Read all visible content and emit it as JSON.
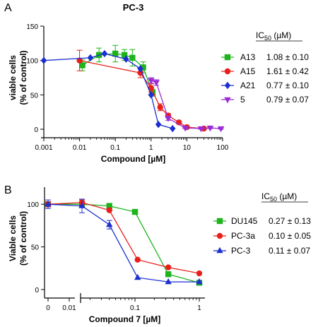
{
  "chart_data": [
    {
      "panel": "A",
      "type": "scatter",
      "title": "PC-3",
      "xlabel": "Compound  [µM]",
      "ylabel": "viable cells",
      "ylabel2": "(% of control)",
      "xscale": "log",
      "xlim": [
        0.001,
        100
      ],
      "ylim": [
        0,
        150
      ],
      "x_ticks": [
        "0.001",
        "0.01",
        "0.1",
        "1",
        "10",
        "100"
      ],
      "y_ticks": [
        "0",
        "50",
        "100",
        "150"
      ],
      "legend_header": {
        "prefix": "IC",
        "sub": "50",
        "suffix": " (µM)"
      },
      "legend_position": "right",
      "series": [
        {
          "name": "A13",
          "value": "1.08 ± 0.10",
          "color": "#1db31d",
          "marker": "square",
          "x": [
            0.012,
            0.035,
            0.1,
            0.18,
            0.3,
            0.6,
            1.1
          ],
          "y": [
            93,
            108,
            110,
            108,
            104,
            90,
            53
          ],
          "err": [
            8,
            10,
            12,
            8,
            12,
            8,
            5
          ]
        },
        {
          "name": "A15",
          "value": "1.61 ± 0.42",
          "color": "#e8201c",
          "marker": "circle",
          "x": [
            0.01,
            0.5,
            1.0,
            1.8,
            3.0,
            6.0,
            10,
            30
          ],
          "y": [
            100,
            82,
            60,
            32,
            20,
            10,
            3,
            1
          ],
          "err": [
            15,
            7,
            6,
            5,
            3,
            2,
            2,
            1
          ]
        },
        {
          "name": "A21",
          "value": "0.77 ± 0.10",
          "color": "#1c2fd0",
          "marker": "diamond",
          "x": [
            0.001,
            0.02,
            0.05,
            0.2,
            0.5,
            1.0,
            1.6,
            4.0
          ],
          "y": [
            100,
            104,
            110,
            102,
            88,
            50,
            7,
            1
          ],
          "err": [
            0,
            0,
            0,
            0,
            0,
            0,
            0,
            0
          ]
        },
        {
          "name": "5",
          "value": "0.79 ± 0.07",
          "color": "#9b2cd4",
          "marker": "triangle-down",
          "x": [
            1.0,
            1.4,
            3.0,
            9.0,
            25,
            45,
            90
          ],
          "y": [
            71,
            68,
            16,
            2,
            1,
            2,
            1
          ],
          "err": [
            4,
            4,
            3,
            1,
            1,
            1,
            1
          ]
        }
      ]
    },
    {
      "panel": "B",
      "type": "line",
      "title": "",
      "xlabel": "Compound 7 [µM]",
      "ylabel": "Viable cells",
      "ylabel2": "(% of control)",
      "xscale": "log-with-break",
      "ylim": [
        0,
        120
      ],
      "x_ticks": [
        "0",
        "0.01",
        "0.1",
        "1"
      ],
      "y_ticks": [
        "0",
        "50",
        "100"
      ],
      "legend_header": {
        "prefix": "IC",
        "sub": "50",
        "suffix": " (µM)"
      },
      "legend_position": "right",
      "series": [
        {
          "name": "DU145",
          "value": "0.27 ± 0.13",
          "color": "#1db31d",
          "marker": "square",
          "x": [
            0,
            0.015,
            0.04,
            0.1,
            0.33,
            1.0
          ],
          "y": [
            100,
            100,
            98,
            91,
            18,
            8
          ],
          "err": [
            3,
            3,
            0,
            0,
            0,
            0
          ]
        },
        {
          "name": "PC-3a",
          "value": "0.10 ± 0.05",
          "color": "#e8201c",
          "marker": "circle",
          "x": [
            0,
            0.015,
            0.04,
            0.11,
            0.33,
            1.0
          ],
          "y": [
            100,
            102,
            93,
            35,
            26,
            19
          ],
          "err": [
            3,
            3,
            0,
            0,
            0,
            0
          ]
        },
        {
          "name": "PC-3",
          "value": "0.11 ± 0.07",
          "color": "#1c2fd0",
          "marker": "triangle-up",
          "x": [
            0,
            0.015,
            0.04,
            0.11,
            0.33,
            1.0
          ],
          "y": [
            100,
            98,
            76,
            14,
            9,
            9
          ],
          "err": [
            5,
            8,
            5,
            0,
            0,
            0
          ]
        }
      ]
    }
  ]
}
